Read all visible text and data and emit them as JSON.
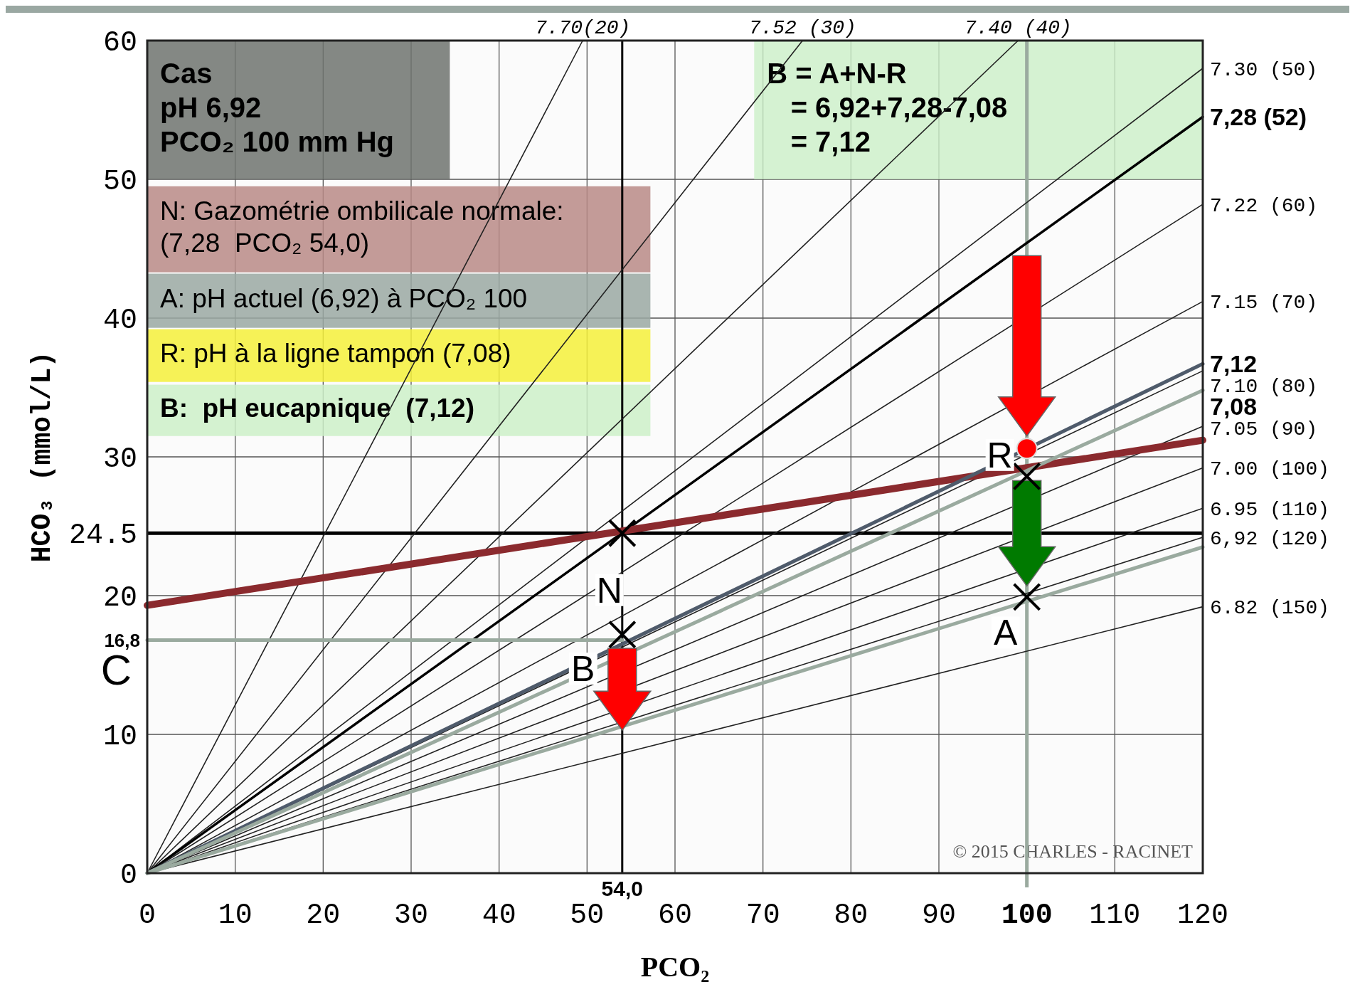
{
  "chart_data": {
    "type": "line",
    "xlabel": "PCO₂",
    "ylabel": "HCO₃ (mmol/L)",
    "xlim": [
      0,
      120
    ],
    "ylim": [
      0,
      60
    ],
    "xticks": [
      0,
      10,
      20,
      30,
      40,
      50,
      60,
      70,
      80,
      90,
      100,
      110,
      120
    ],
    "yticks": [
      0,
      10,
      20,
      24.5,
      30,
      40,
      50,
      60
    ],
    "grid": true,
    "series": [
      {
        "name": "7.70(20)",
        "color": "#222222",
        "x": [
          0,
          49.5
        ],
        "values": [
          0,
          60
        ]
      },
      {
        "name": "7.52 (30)",
        "color": "#222222",
        "x": [
          0,
          74.5
        ],
        "values": [
          0,
          60
        ]
      },
      {
        "name": "7.40 (40)",
        "color": "#222222",
        "x": [
          0,
          99
        ],
        "values": [
          0,
          60
        ]
      },
      {
        "name": "7.30 (50)",
        "color": "#222222",
        "x": [
          0,
          120
        ],
        "values": [
          0,
          58
        ]
      },
      {
        "name": "7,28 (52)",
        "color": "#000000",
        "x": [
          0,
          120
        ],
        "values": [
          0,
          54.5
        ]
      },
      {
        "name": "7.22 (60)",
        "color": "#222222",
        "x": [
          0,
          120
        ],
        "values": [
          0,
          48.2
        ]
      },
      {
        "name": "7.15 (70)",
        "color": "#222222",
        "x": [
          0,
          120
        ],
        "values": [
          0,
          41.2
        ]
      },
      {
        "name": "7.10 (80)",
        "color": "#222222",
        "x": [
          0,
          120
        ],
        "values": [
          0,
          36.2
        ]
      },
      {
        "name": "7.05 (90)",
        "color": "#222222",
        "x": [
          0,
          120
        ],
        "values": [
          0,
          32.2
        ]
      },
      {
        "name": "7.00 (100)",
        "color": "#222222",
        "x": [
          0,
          120
        ],
        "values": [
          0,
          29.2
        ]
      },
      {
        "name": "6.95 (110)",
        "color": "#222222",
        "x": [
          0,
          120
        ],
        "values": [
          0,
          26.3
        ]
      },
      {
        "name": "6,92 (120)",
        "color": "#222222",
        "x": [
          0,
          120
        ],
        "values": [
          0,
          24.2
        ]
      },
      {
        "name": "6.82 (150)",
        "color": "#222222",
        "x": [
          0,
          120
        ],
        "values": [
          0,
          19.2
        ]
      },
      {
        "color": "#8b2a2e",
        "x": [
          0,
          120
        ],
        "values": [
          19.3,
          31.2
        ]
      },
      {
        "name": "7,12",
        "color": "#4f5b6b",
        "x": [
          0,
          120
        ],
        "values": [
          0,
          36.7
        ]
      },
      {
        "name": "7,08",
        "color": "#9aaa9f",
        "x": [
          0,
          120
        ],
        "values": [
          0,
          34.8
        ]
      },
      {
        "color": "#9aaa9f",
        "x": [
          0,
          120
        ],
        "values": [
          0,
          23.5
        ]
      },
      {
        "color": "#9aaa9f",
        "x": [
          0,
          54
        ],
        "values": [
          16.8,
          16.8
        ]
      },
      {
        "type": "scatter",
        "color": "#000000",
        "x": [
          54,
          54,
          100,
          100
        ],
        "values": [
          24.5,
          17.2,
          28.6,
          19.9
        ]
      }
    ],
    "ref_lines": [
      {
        "axis": "y",
        "value": 24.5,
        "color": "#000000"
      },
      {
        "axis": "x",
        "value": 54,
        "label": "54,0",
        "color": "#000000"
      },
      {
        "axis": "x",
        "value": 100,
        "color": "#9aaa9f"
      }
    ],
    "annotations": [
      "Cas\npH 6,92\nPCO₂ 100 mm Hg",
      "B = A+N-R\n   = 6,92+7,28-7,08\n   = 7,12",
      "N: Gazométrie ombilicale normale:\n(7,28  PCO₂ 54,0)",
      "A: pH actuel (6,92) à PCO₂ 100",
      "R: pH à la ligne tampon (7,08)",
      "B:  pH eucapnique  (7,12)",
      "© 2015 CHARLES - RACINET",
      {
        "text": "N",
        "x": 54,
        "y": 24.5
      },
      {
        "text": "B",
        "x": 54,
        "y": 17.2
      },
      {
        "text": "R",
        "x": 100,
        "y": 28.6
      },
      {
        "text": "A",
        "x": 100,
        "y": 19.9
      },
      {
        "text": "16,8",
        "x": 0,
        "y": 16.8
      },
      {
        "text": "C",
        "x": 0,
        "y": 16.8
      }
    ]
  }
}
